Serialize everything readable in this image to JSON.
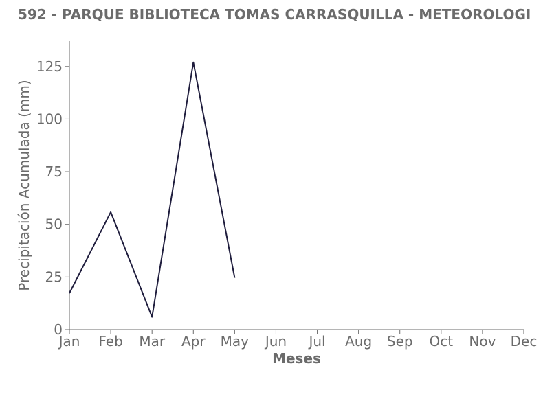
{
  "chart_data": {
    "type": "line",
    "title": "592 - PARQUE BIBLIOTECA TOMAS CARRASQUILLA - METEOROLOGI",
    "xlabel": "Meses",
    "ylabel": "Precipitación Acumulada (mm)",
    "categories": [
      "Jan",
      "Feb",
      "Mar",
      "Apr",
      "May",
      "Jun",
      "Jul",
      "Aug",
      "Sep",
      "Oct",
      "Nov",
      "Dec"
    ],
    "series": [
      {
        "values": [
          17.3,
          55.8,
          6.0,
          127.0,
          24.6,
          null,
          null,
          null,
          null,
          null,
          null,
          null
        ]
      }
    ],
    "ylim": [
      0,
      137
    ],
    "yticks": [
      0,
      25,
      50,
      75,
      100,
      125
    ],
    "grid": false,
    "legend": "none",
    "colors": {
      "line": "#1f1d3d",
      "axis": "#6b6b6b",
      "text": "#6b6b6b"
    }
  }
}
